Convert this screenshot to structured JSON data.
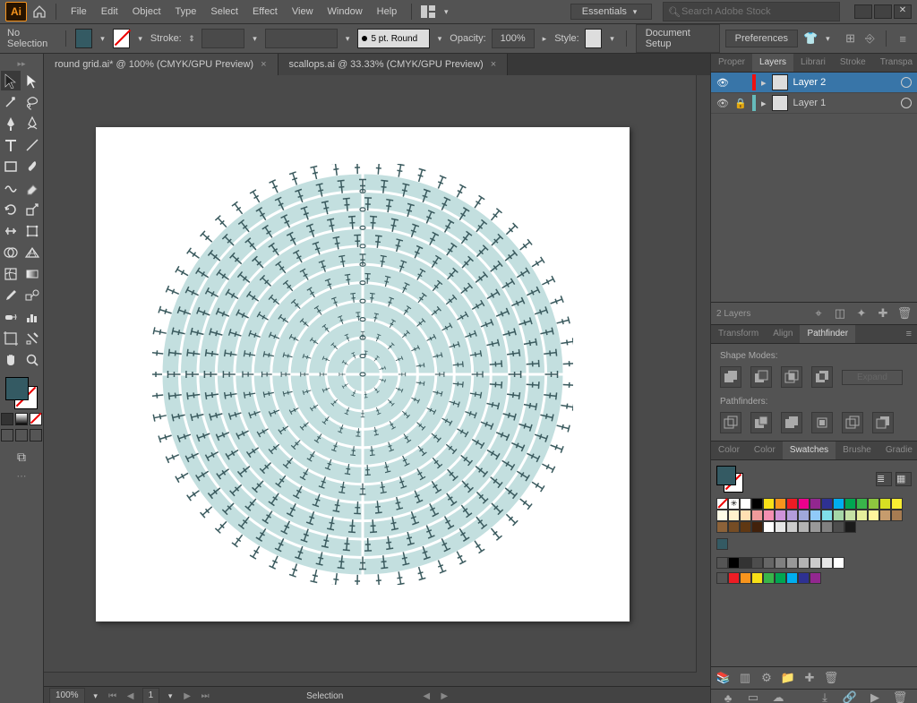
{
  "app": {
    "name": "Ai"
  },
  "menu": [
    "File",
    "Edit",
    "Object",
    "Type",
    "Select",
    "Effect",
    "View",
    "Window",
    "Help"
  ],
  "workspace": "Essentials",
  "stock_placeholder": "Search Adobe Stock",
  "control": {
    "selection": "No Selection",
    "stroke_label": "Stroke:",
    "stroke_weight": "",
    "profile": "5 pt. Round",
    "opacity_label": "Opacity:",
    "opacity": "100%",
    "style_label": "Style:",
    "doc_setup": "Document Setup",
    "prefs": "Preferences"
  },
  "tabs": [
    {
      "title": "round grid.ai* @ 100% (CMYK/GPU Preview)",
      "active": true
    },
    {
      "title": "scallops.ai @ 33.33% (CMYK/GPU Preview)",
      "active": false
    }
  ],
  "status": {
    "zoom": "100%",
    "page": "1",
    "tool": "Selection"
  },
  "layers": {
    "tabs": [
      "Proper",
      "Layers",
      "Librari",
      "Stroke",
      "Transpa"
    ],
    "active": 1,
    "rows": [
      {
        "name": "Layer 2",
        "color": "#e11",
        "sel": true,
        "locked": false
      },
      {
        "name": "Layer 1",
        "color": "#6bb",
        "sel": false,
        "locked": true
      }
    ],
    "count": "2 Layers"
  },
  "pathfinder": {
    "tabs": [
      "Transform",
      "Align",
      "Pathfinder"
    ],
    "active": 2,
    "shape_modes": "Shape Modes:",
    "pathfinders": "Pathfinders:",
    "expand": "Expand"
  },
  "swatch_panel": {
    "tabs": [
      "Color",
      "Color",
      "Swatches",
      "Brushe",
      "Gradie"
    ],
    "active": 2,
    "row1": [
      "#ffffff",
      "#000000",
      "#f7e017",
      "#f7941d",
      "#ed1c24",
      "#ec008c",
      "#92278f",
      "#2e3192",
      "#00aeef",
      "#00a651",
      "#39b54a",
      "#8dc63f",
      "#d7df23",
      "#f9ed32"
    ],
    "row2": [
      "#fffde7",
      "#fff2cc",
      "#ffe0b2",
      "#ef9a9a",
      "#f48fb1",
      "#ce93d8",
      "#b39ddb",
      "#9fa8da",
      "#90caf9",
      "#80deea",
      "#a5d6a7",
      "#c5e1a5",
      "#e6ee9c",
      "#fff59d"
    ],
    "row3": [
      "#c69c6d",
      "#a67c52",
      "#8c6239",
      "#754c24",
      "#603813",
      "#42210b",
      "#ffffff",
      "#e6e6e6",
      "#cccccc",
      "#b3b3b3",
      "#999999",
      "#808080",
      "#4d4d4d",
      "#1a1a1a"
    ],
    "extra": [
      "#345a63"
    ],
    "gray": [
      "#000000",
      "#333333",
      "#4d4d4d",
      "#666666",
      "#808080",
      "#999999",
      "#b3b3b3",
      "#cccccc",
      "#e6e6e6",
      "#ffffff"
    ],
    "bright": [
      "#ed1c24",
      "#f7941d",
      "#f7e017",
      "#39b54a",
      "#00a651",
      "#00aeef",
      "#2e3192",
      "#92278f"
    ]
  },
  "artwork": {
    "radius": 225,
    "rings": 11,
    "ring_fill": "#c3dfdf",
    "ring_stroke": "#ffffff",
    "symbol_stroke": "#3a5a5e",
    "wedges": 4
  }
}
